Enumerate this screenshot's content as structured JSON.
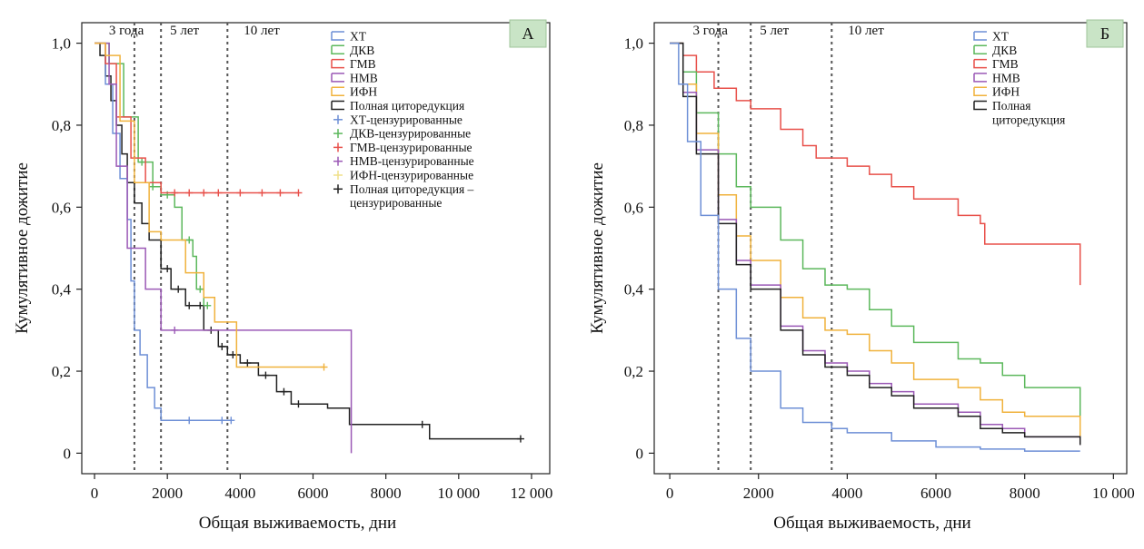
{
  "chart_data": [
    {
      "type": "line",
      "panel_label": "А",
      "xlabel": "Общая выживаемость, дни",
      "ylabel": "Кумулятивное дожитие",
      "xlim": [
        -350,
        12500
      ],
      "ylim": [
        -0.05,
        1.05
      ],
      "x_ticks": [
        0,
        2000,
        4000,
        6000,
        8000,
        10000,
        12000
      ],
      "x_tick_labels": [
        "0",
        "2000",
        "4000",
        "6000",
        "8000",
        "10 000",
        "12 000"
      ],
      "y_ticks": [
        0,
        0.2,
        0.4,
        0.6,
        0.8,
        1.0
      ],
      "y_tick_labels": [
        "0",
        "0,2",
        "0,4",
        "0,6",
        "0,8",
        "1,0"
      ],
      "reference_lines": [
        {
          "x": 1095,
          "label": "3 года"
        },
        {
          "x": 1825,
          "label": "5 лет"
        },
        {
          "x": 3650,
          "label": "10 лет"
        }
      ],
      "legend_position": "top-right",
      "legend": [
        {
          "label": "ХТ",
          "color": "#6d8fd6",
          "kind": "line"
        },
        {
          "label": "ДКВ",
          "color": "#5cb85c",
          "kind": "line"
        },
        {
          "label": "ГМВ",
          "color": "#e8504a",
          "kind": "line"
        },
        {
          "label": "НМВ",
          "color": "#9b59b6",
          "kind": "line"
        },
        {
          "label": "ИФН",
          "color": "#f0b23c",
          "kind": "line"
        },
        {
          "label": "Полная циторедукция",
          "color": "#222222",
          "kind": "line"
        },
        {
          "label": "ХТ-цензурированные",
          "color": "#6d8fd6",
          "kind": "cross"
        },
        {
          "label": "ДКВ-цензурированные",
          "color": "#5cb85c",
          "kind": "cross"
        },
        {
          "label": "ГМВ-цензурированные",
          "color": "#e8504a",
          "kind": "cross"
        },
        {
          "label": "НМВ-цензурированные",
          "color": "#9b59b6",
          "kind": "cross"
        },
        {
          "label": "ИФН-цензурированные",
          "color": "#f0e08a",
          "kind": "cross"
        },
        {
          "label": "Полная циторедукция –",
          "label2": "цензурированные",
          "color": "#222222",
          "kind": "cross"
        }
      ],
      "series": [
        {
          "name": "Полная циторедукция",
          "color": "#222222",
          "points": [
            [
              0,
              1.0
            ],
            [
              150,
              0.97
            ],
            [
              300,
              0.92
            ],
            [
              450,
              0.86
            ],
            [
              600,
              0.8
            ],
            [
              750,
              0.73
            ],
            [
              900,
              0.66
            ],
            [
              1095,
              0.61
            ],
            [
              1300,
              0.56
            ],
            [
              1500,
              0.52
            ],
            [
              1825,
              0.45
            ],
            [
              2100,
              0.4
            ],
            [
              2500,
              0.36
            ],
            [
              3000,
              0.3
            ],
            [
              3400,
              0.26
            ],
            [
              3650,
              0.24
            ],
            [
              4000,
              0.22
            ],
            [
              4500,
              0.19
            ],
            [
              5000,
              0.15
            ],
            [
              5400,
              0.12
            ],
            [
              6000,
              0.12
            ],
            [
              6400,
              0.11
            ],
            [
              7000,
              0.07
            ],
            [
              8000,
              0.07
            ],
            [
              9200,
              0.07
            ],
            [
              9200,
              0.035
            ],
            [
              11700,
              0.035
            ]
          ],
          "censored": [
            2000,
            2300,
            2600,
            2900,
            3200,
            3500,
            3800,
            4200,
            4700,
            5200,
            5600,
            9000,
            11700
          ]
        },
        {
          "name": "ХТ",
          "color": "#6d8fd6",
          "points": [
            [
              0,
              1.0
            ],
            [
              300,
              0.9
            ],
            [
              500,
              0.78
            ],
            [
              700,
              0.67
            ],
            [
              900,
              0.57
            ],
            [
              1000,
              0.42
            ],
            [
              1095,
              0.3
            ],
            [
              1250,
              0.24
            ],
            [
              1450,
              0.16
            ],
            [
              1650,
              0.11
            ],
            [
              1825,
              0.08
            ],
            [
              3750,
              0.08
            ]
          ],
          "censored": [
            2600,
            3500,
            3750
          ]
        },
        {
          "name": "ДКВ",
          "color": "#5cb85c",
          "points": [
            [
              0,
              1.0
            ],
            [
              400,
              0.95
            ],
            [
              800,
              0.82
            ],
            [
              1200,
              0.71
            ],
            [
              1600,
              0.65
            ],
            [
              1825,
              0.63
            ],
            [
              2200,
              0.6
            ],
            [
              2400,
              0.52
            ],
            [
              2700,
              0.48
            ],
            [
              2800,
              0.4
            ],
            [
              3000,
              0.36
            ],
            [
              3100,
              0.36
            ]
          ],
          "censored": [
            1300,
            1600,
            2000,
            2600,
            2900,
            3100
          ]
        },
        {
          "name": "ГМВ",
          "color": "#e8504a",
          "points": [
            [
              0,
              1.0
            ],
            [
              300,
              0.95
            ],
            [
              600,
              0.82
            ],
            [
              1000,
              0.72
            ],
            [
              1400,
              0.66
            ],
            [
              1825,
              0.635
            ],
            [
              5600,
              0.635
            ]
          ],
          "censored": [
            2200,
            2600,
            3000,
            3400,
            4000,
            4600,
            5100,
            5600
          ]
        },
        {
          "name": "НМВ",
          "color": "#9b59b6",
          "points": [
            [
              0,
              1.0
            ],
            [
              400,
              0.9
            ],
            [
              600,
              0.7
            ],
            [
              900,
              0.5
            ],
            [
              1400,
              0.4
            ],
            [
              1825,
              0.3
            ],
            [
              7050,
              0.3
            ],
            [
              7050,
              0.0
            ]
          ],
          "censored": [
            2200
          ]
        },
        {
          "name": "ИФН",
          "color": "#f0b23c",
          "points": [
            [
              0,
              1.0
            ],
            [
              300,
              0.97
            ],
            [
              700,
              0.81
            ],
            [
              1095,
              0.66
            ],
            [
              1500,
              0.54
            ],
            [
              1825,
              0.52
            ],
            [
              2500,
              0.44
            ],
            [
              3000,
              0.38
            ],
            [
              3300,
              0.32
            ],
            [
              3900,
              0.32
            ],
            [
              3900,
              0.21
            ],
            [
              6300,
              0.21
            ]
          ],
          "censored": [
            6300
          ]
        }
      ]
    },
    {
      "type": "line",
      "panel_label": "Б",
      "xlabel": "Общая выживаемость, дни",
      "ylabel": "Кумулятивное дожитие",
      "xlim": [
        -350,
        10300
      ],
      "ylim": [
        -0.05,
        1.05
      ],
      "x_ticks": [
        0,
        2000,
        4000,
        6000,
        8000,
        10000
      ],
      "x_tick_labels": [
        "0",
        "2000",
        "4000",
        "6000",
        "8000",
        "10 000"
      ],
      "y_ticks": [
        0,
        0.2,
        0.4,
        0.6,
        0.8,
        1.0
      ],
      "y_tick_labels": [
        "0",
        "0,2",
        "0,4",
        "0,6",
        "0,8",
        "1,0"
      ],
      "reference_lines": [
        {
          "x": 1095,
          "label": "3 года"
        },
        {
          "x": 1825,
          "label": "5 лет"
        },
        {
          "x": 3650,
          "label": "10 лет"
        }
      ],
      "legend_position": "top-right",
      "legend": [
        {
          "label": "ХТ",
          "color": "#6d8fd6",
          "kind": "line"
        },
        {
          "label": "ДКВ",
          "color": "#5cb85c",
          "kind": "line"
        },
        {
          "label": "ГМВ",
          "color": "#e8504a",
          "kind": "line"
        },
        {
          "label": "НМВ",
          "color": "#9b59b6",
          "kind": "line"
        },
        {
          "label": "ИФН",
          "color": "#f0b23c",
          "kind": "line"
        },
        {
          "label": "Полная",
          "label2": "циторедукция",
          "color": "#222222",
          "kind": "line"
        }
      ],
      "series": [
        {
          "name": "ГМВ",
          "color": "#e8504a",
          "points": [
            [
              0,
              1.0
            ],
            [
              300,
              0.97
            ],
            [
              600,
              0.93
            ],
            [
              1000,
              0.89
            ],
            [
              1500,
              0.86
            ],
            [
              1825,
              0.84
            ],
            [
              2500,
              0.79
            ],
            [
              3000,
              0.75
            ],
            [
              3300,
              0.72
            ],
            [
              3650,
              0.72
            ],
            [
              4000,
              0.7
            ],
            [
              4500,
              0.68
            ],
            [
              5000,
              0.65
            ],
            [
              5500,
              0.62
            ],
            [
              6400,
              0.62
            ],
            [
              6500,
              0.58
            ],
            [
              7000,
              0.56
            ],
            [
              7100,
              0.51
            ],
            [
              9250,
              0.51
            ],
            [
              9250,
              0.41
            ]
          ]
        },
        {
          "name": "ДКВ",
          "color": "#5cb85c",
          "points": [
            [
              0,
              1.0
            ],
            [
              300,
              0.93
            ],
            [
              600,
              0.83
            ],
            [
              1095,
              0.73
            ],
            [
              1500,
              0.65
            ],
            [
              1825,
              0.6
            ],
            [
              2500,
              0.52
            ],
            [
              3000,
              0.45
            ],
            [
              3500,
              0.41
            ],
            [
              4000,
              0.4
            ],
            [
              4500,
              0.35
            ],
            [
              5000,
              0.31
            ],
            [
              5500,
              0.27
            ],
            [
              6300,
              0.27
            ],
            [
              6500,
              0.23
            ],
            [
              7000,
              0.22
            ],
            [
              7500,
              0.19
            ],
            [
              8000,
              0.16
            ],
            [
              9250,
              0.16
            ],
            [
              9250,
              0.08
            ]
          ]
        },
        {
          "name": "ИФН",
          "color": "#f0b23c",
          "points": [
            [
              0,
              1.0
            ],
            [
              300,
              0.9
            ],
            [
              600,
              0.78
            ],
            [
              1095,
              0.63
            ],
            [
              1500,
              0.53
            ],
            [
              1825,
              0.47
            ],
            [
              2500,
              0.38
            ],
            [
              3000,
              0.33
            ],
            [
              3500,
              0.3
            ],
            [
              4000,
              0.29
            ],
            [
              4500,
              0.25
            ],
            [
              5000,
              0.22
            ],
            [
              5500,
              0.18
            ],
            [
              6500,
              0.16
            ],
            [
              7000,
              0.13
            ],
            [
              7500,
              0.1
            ],
            [
              8000,
              0.09
            ],
            [
              9250,
              0.09
            ],
            [
              9250,
              0.03
            ]
          ]
        },
        {
          "name": "НМВ",
          "color": "#9b59b6",
          "points": [
            [
              0,
              1.0
            ],
            [
              300,
              0.88
            ],
            [
              600,
              0.74
            ],
            [
              1095,
              0.57
            ],
            [
              1500,
              0.47
            ],
            [
              1825,
              0.41
            ],
            [
              2500,
              0.31
            ],
            [
              3000,
              0.25
            ],
            [
              3500,
              0.22
            ],
            [
              4000,
              0.2
            ],
            [
              4500,
              0.17
            ],
            [
              5000,
              0.15
            ],
            [
              5500,
              0.12
            ],
            [
              6500,
              0.1
            ],
            [
              7000,
              0.07
            ],
            [
              7500,
              0.06
            ],
            [
              8000,
              0.04
            ],
            [
              9250,
              0.04
            ],
            [
              9250,
              0.02
            ]
          ]
        },
        {
          "name": "Полная циторедукция",
          "color": "#222222",
          "points": [
            [
              0,
              1.0
            ],
            [
              300,
              0.87
            ],
            [
              600,
              0.73
            ],
            [
              1095,
              0.56
            ],
            [
              1500,
              0.46
            ],
            [
              1825,
              0.4
            ],
            [
              2500,
              0.3
            ],
            [
              3000,
              0.24
            ],
            [
              3500,
              0.21
            ],
            [
              4000,
              0.19
            ],
            [
              4500,
              0.16
            ],
            [
              5000,
              0.14
            ],
            [
              5500,
              0.11
            ],
            [
              6500,
              0.09
            ],
            [
              7000,
              0.06
            ],
            [
              7500,
              0.05
            ],
            [
              8000,
              0.04
            ],
            [
              9250,
              0.04
            ],
            [
              9250,
              0.02
            ]
          ]
        },
        {
          "name": "ХТ",
          "color": "#6d8fd6",
          "points": [
            [
              0,
              1.0
            ],
            [
              200,
              0.9
            ],
            [
              400,
              0.76
            ],
            [
              700,
              0.58
            ],
            [
              1095,
              0.4
            ],
            [
              1500,
              0.28
            ],
            [
              1825,
              0.2
            ],
            [
              2500,
              0.11
            ],
            [
              3000,
              0.075
            ],
            [
              3650,
              0.06
            ],
            [
              4000,
              0.05
            ],
            [
              5000,
              0.03
            ],
            [
              6000,
              0.015
            ],
            [
              7000,
              0.01
            ],
            [
              8000,
              0.005
            ],
            [
              9250,
              0.005
            ]
          ]
        }
      ]
    }
  ]
}
